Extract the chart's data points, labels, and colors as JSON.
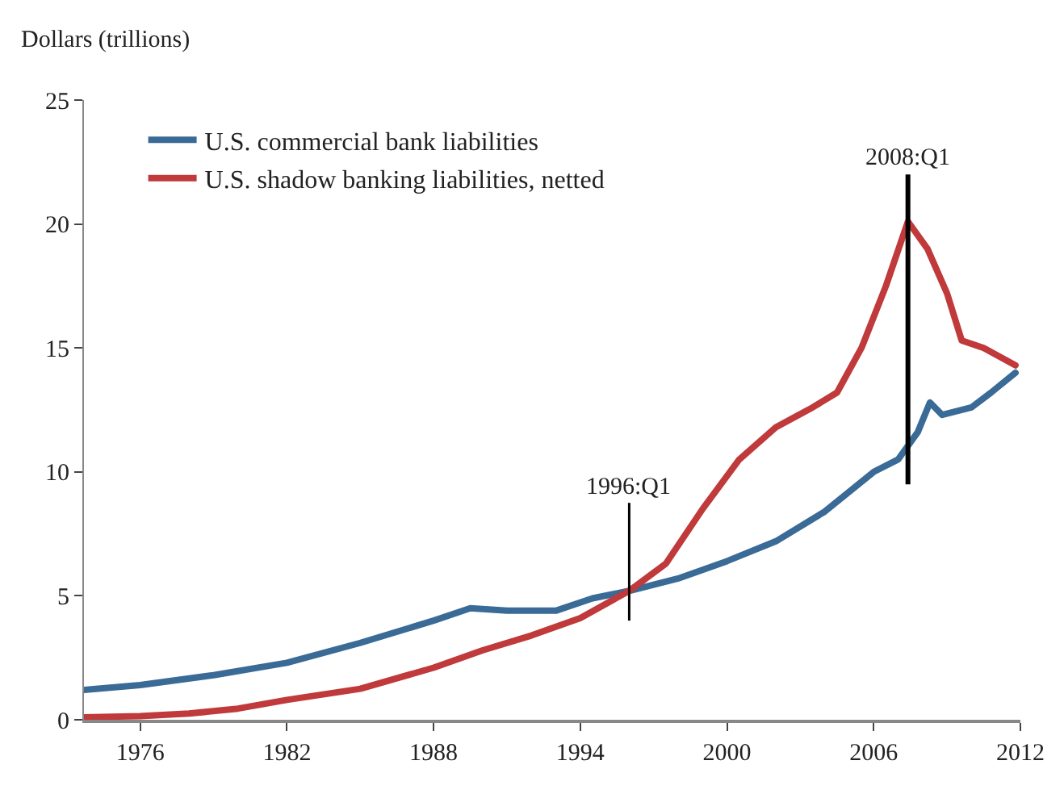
{
  "chart_data": {
    "type": "line",
    "ylabel": "Dollars (trillions)",
    "xlim": [
      1973.7,
      2012
    ],
    "xticks": [
      1976,
      1982,
      1988,
      1994,
      2000,
      2006,
      2012
    ],
    "ylim": [
      0,
      25
    ],
    "yticks": [
      0,
      5,
      10,
      15,
      20,
      25
    ],
    "legend": "top left",
    "series": [
      {
        "name": "U.S. commercial bank liabilities",
        "color": "#3a6a96",
        "x": [
          1973.7,
          1976,
          1979,
          1982,
          1985,
          1988,
          1989.5,
          1991,
          1993,
          1994.5,
          1996,
          1998,
          2000,
          2002,
          2004,
          2006,
          2007,
          2007.8,
          2008.3,
          2008.8,
          2010,
          2010.8,
          2011.8
        ],
        "values": [
          1.2,
          1.4,
          1.8,
          2.3,
          3.1,
          4.0,
          4.5,
          4.4,
          4.4,
          4.9,
          5.2,
          5.7,
          6.4,
          7.2,
          8.4,
          10.0,
          10.5,
          11.6,
          12.8,
          12.3,
          12.6,
          13.2,
          14.0
        ]
      },
      {
        "name": "U.S. shadow banking liabilities, netted",
        "color": "#c0393b",
        "x": [
          1973.7,
          1976,
          1978,
          1980,
          1982,
          1985,
          1988,
          1990,
          1992,
          1994,
          1996,
          1997.5,
          1999,
          2000.5,
          2002,
          2003.5,
          2004.5,
          2005.5,
          2006.5,
          2007.4,
          2008.2,
          2009,
          2009.6,
          2010.5,
          2011.8
        ],
        "values": [
          0.1,
          0.15,
          0.25,
          0.45,
          0.8,
          1.25,
          2.1,
          2.8,
          3.4,
          4.1,
          5.2,
          6.3,
          8.5,
          10.5,
          11.8,
          12.6,
          13.2,
          15.0,
          17.5,
          20.1,
          19.0,
          17.2,
          15.3,
          15.0,
          14.3
        ]
      }
    ],
    "ref_lines": [
      {
        "axis": "x",
        "value": 1996,
        "label": "1996:Q1",
        "color": "#000000"
      },
      {
        "axis": "x",
        "value": 2007.4,
        "label": "2008:Q1",
        "color": "#000000"
      }
    ]
  }
}
